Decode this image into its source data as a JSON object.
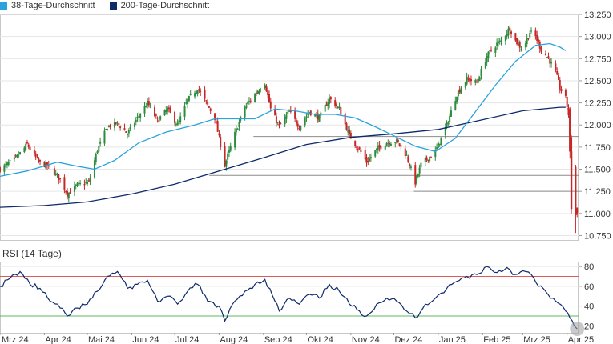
{
  "legend": {
    "items": [
      {
        "label": "38-Tage-Durchschnitt",
        "color": "#29a3dc"
      },
      {
        "label": "200-Tage-Durchschnitt",
        "color": "#0e2a6b"
      }
    ]
  },
  "chart_data": [
    {
      "type": "candlestick",
      "x_range": [
        "2024-03-01",
        "2025-04-09"
      ],
      "y_range": [
        10.7,
        13.25
      ],
      "y_ticks": [
        "13.250",
        "13.000",
        "12.750",
        "12.500",
        "12.250",
        "12.000",
        "11.750",
        "11.500",
        "11.250",
        "11.000",
        "10.750"
      ],
      "x_ticks": [
        "Mrz 24",
        "Apr 24",
        "Mai 24",
        "Jun 24",
        "Jul 24",
        "Aug 24",
        "Sep 24",
        "Okt 24",
        "Nov 24",
        "Dez 24",
        "Jan 25",
        "Feb 25",
        "Mrz 25",
        "Apr 25"
      ],
      "colors": {
        "up": "#2e8b3e",
        "down": "#c62828"
      },
      "horizontal_levels": [
        11.87,
        11.43,
        11.25,
        11.13
      ],
      "close_path": [
        [
          "2024-03-01",
          11.5
        ],
        [
          "2024-03-12",
          11.62
        ],
        [
          "2024-03-20",
          11.78
        ],
        [
          "2024-03-28",
          11.58
        ],
        [
          "2024-04-05",
          11.52
        ],
        [
          "2024-04-12",
          11.38
        ],
        [
          "2024-04-17",
          11.22
        ],
        [
          "2024-04-24",
          11.32
        ],
        [
          "2024-05-02",
          11.35
        ],
        [
          "2024-05-08",
          11.72
        ],
        [
          "2024-05-15",
          11.98
        ],
        [
          "2024-05-22",
          12.02
        ],
        [
          "2024-05-29",
          11.9
        ],
        [
          "2024-06-05",
          12.08
        ],
        [
          "2024-06-12",
          12.25
        ],
        [
          "2024-06-19",
          12.05
        ],
        [
          "2024-06-26",
          12.18
        ],
        [
          "2024-07-03",
          12.0
        ],
        [
          "2024-07-10",
          12.28
        ],
        [
          "2024-07-17",
          12.42
        ],
        [
          "2024-07-22",
          12.28
        ],
        [
          "2024-07-29",
          12.08
        ],
        [
          "2024-08-05",
          11.55
        ],
        [
          "2024-08-12",
          11.9
        ],
        [
          "2024-08-19",
          12.2
        ],
        [
          "2024-08-26",
          12.35
        ],
        [
          "2024-09-02",
          12.48
        ],
        [
          "2024-09-06",
          12.18
        ],
        [
          "2024-09-12",
          11.98
        ],
        [
          "2024-09-19",
          12.15
        ],
        [
          "2024-09-26",
          11.98
        ],
        [
          "2024-10-03",
          12.15
        ],
        [
          "2024-10-10",
          12.08
        ],
        [
          "2024-10-17",
          12.3
        ],
        [
          "2024-10-24",
          12.18
        ],
        [
          "2024-10-31",
          11.88
        ],
        [
          "2024-11-07",
          11.72
        ],
        [
          "2024-11-12",
          11.58
        ],
        [
          "2024-11-19",
          11.72
        ],
        [
          "2024-11-26",
          11.8
        ],
        [
          "2024-12-03",
          11.82
        ],
        [
          "2024-12-10",
          11.65
        ],
        [
          "2024-12-16",
          11.35
        ],
        [
          "2024-12-20",
          11.55
        ],
        [
          "2024-12-30",
          11.7
        ],
        [
          "2025-01-07",
          12.0
        ],
        [
          "2025-01-14",
          12.35
        ],
        [
          "2025-01-21",
          12.52
        ],
        [
          "2025-01-28",
          12.48
        ],
        [
          "2025-02-04",
          12.78
        ],
        [
          "2025-02-11",
          12.92
        ],
        [
          "2025-02-14",
          12.95
        ],
        [
          "2025-02-20",
          13.1
        ],
        [
          "2025-02-24",
          12.95
        ],
        [
          "2025-03-01",
          12.85
        ],
        [
          "2025-03-06",
          13.05
        ],
        [
          "2025-03-10",
          13.0
        ],
        [
          "2025-03-14",
          12.85
        ],
        [
          "2025-03-19",
          12.75
        ],
        [
          "2025-03-24",
          12.6
        ],
        [
          "2025-03-27",
          12.42
        ],
        [
          "2025-03-31",
          12.3
        ],
        [
          "2025-04-02",
          12.12
        ],
        [
          "2025-04-04",
          11.55
        ],
        [
          "2025-04-07",
          11.05
        ],
        [
          "2025-04-08",
          11.0
        ]
      ],
      "ma38": [
        [
          "2024-03-01",
          11.42
        ],
        [
          "2024-03-20",
          11.48
        ],
        [
          "2024-04-10",
          11.58
        ],
        [
          "2024-04-25",
          11.53
        ],
        [
          "2024-05-06",
          11.5
        ],
        [
          "2024-05-20",
          11.6
        ],
        [
          "2024-06-06",
          11.8
        ],
        [
          "2024-06-25",
          11.92
        ],
        [
          "2024-07-15",
          12.0
        ],
        [
          "2024-07-29",
          12.07
        ],
        [
          "2024-08-12",
          12.07
        ],
        [
          "2024-08-26",
          12.07
        ],
        [
          "2024-09-09",
          12.18
        ],
        [
          "2024-09-23",
          12.16
        ],
        [
          "2024-10-07",
          12.12
        ],
        [
          "2024-10-21",
          12.12
        ],
        [
          "2024-11-04",
          12.08
        ],
        [
          "2024-11-18",
          11.98
        ],
        [
          "2024-12-02",
          11.87
        ],
        [
          "2024-12-16",
          11.76
        ],
        [
          "2024-12-30",
          11.7
        ],
        [
          "2025-01-13",
          11.85
        ],
        [
          "2025-01-27",
          12.15
        ],
        [
          "2025-02-10",
          12.45
        ],
        [
          "2025-02-24",
          12.72
        ],
        [
          "2025-03-10",
          12.9
        ],
        [
          "2025-03-20",
          12.92
        ],
        [
          "2025-03-27",
          12.88
        ],
        [
          "2025-03-31",
          12.84
        ]
      ],
      "ma200": [
        [
          "2024-03-01",
          11.07
        ],
        [
          "2024-04-01",
          11.09
        ],
        [
          "2024-05-01",
          11.13
        ],
        [
          "2024-06-01",
          11.22
        ],
        [
          "2024-07-01",
          11.33
        ],
        [
          "2024-08-01",
          11.48
        ],
        [
          "2024-09-01",
          11.63
        ],
        [
          "2024-10-01",
          11.78
        ],
        [
          "2024-11-01",
          11.86
        ],
        [
          "2024-12-01",
          11.9
        ],
        [
          "2025-01-01",
          11.95
        ],
        [
          "2025-02-01",
          12.06
        ],
        [
          "2025-03-01",
          12.16
        ],
        [
          "2025-03-27",
          12.2
        ],
        [
          "2025-03-31",
          12.2
        ]
      ]
    },
    {
      "type": "line",
      "title": "RSI (14 Tage)",
      "y_range": [
        13,
        85
      ],
      "y_ticks": [
        "80",
        "60",
        "40",
        "20"
      ],
      "reference_lines": [
        70,
        30
      ],
      "color": "#0e2a6b",
      "values": [
        [
          "2024-03-01",
          60
        ],
        [
          "2024-03-08",
          68
        ],
        [
          "2024-03-15",
          75
        ],
        [
          "2024-03-22",
          62
        ],
        [
          "2024-03-29",
          58
        ],
        [
          "2024-04-05",
          45
        ],
        [
          "2024-04-12",
          38
        ],
        [
          "2024-04-17",
          30
        ],
        [
          "2024-04-24",
          38
        ],
        [
          "2024-05-01",
          42
        ],
        [
          "2024-05-08",
          55
        ],
        [
          "2024-05-15",
          70
        ],
        [
          "2024-05-22",
          75
        ],
        [
          "2024-05-29",
          58
        ],
        [
          "2024-06-05",
          62
        ],
        [
          "2024-06-12",
          66
        ],
        [
          "2024-06-19",
          45
        ],
        [
          "2024-06-26",
          50
        ],
        [
          "2024-07-03",
          42
        ],
        [
          "2024-07-10",
          55
        ],
        [
          "2024-07-17",
          62
        ],
        [
          "2024-07-24",
          45
        ],
        [
          "2024-08-01",
          40
        ],
        [
          "2024-08-05",
          25
        ],
        [
          "2024-08-12",
          45
        ],
        [
          "2024-08-19",
          55
        ],
        [
          "2024-08-26",
          62
        ],
        [
          "2024-09-02",
          67
        ],
        [
          "2024-09-09",
          45
        ],
        [
          "2024-09-12",
          35
        ],
        [
          "2024-09-19",
          48
        ],
        [
          "2024-09-26",
          42
        ],
        [
          "2024-10-03",
          52
        ],
        [
          "2024-10-10",
          48
        ],
        [
          "2024-10-17",
          62
        ],
        [
          "2024-10-24",
          55
        ],
        [
          "2024-10-31",
          42
        ],
        [
          "2024-11-07",
          35
        ],
        [
          "2024-11-12",
          30
        ],
        [
          "2024-11-19",
          42
        ],
        [
          "2024-11-26",
          48
        ],
        [
          "2024-12-03",
          45
        ],
        [
          "2024-12-10",
          35
        ],
        [
          "2024-12-16",
          28
        ],
        [
          "2024-12-23",
          42
        ],
        [
          "2024-12-30",
          48
        ],
        [
          "2025-01-07",
          58
        ],
        [
          "2025-01-14",
          65
        ],
        [
          "2025-01-21",
          70
        ],
        [
          "2025-01-28",
          72
        ],
        [
          "2025-02-04",
          80
        ],
        [
          "2025-02-11",
          74
        ],
        [
          "2025-02-18",
          79
        ],
        [
          "2025-02-24",
          72
        ],
        [
          "2025-03-03",
          75
        ],
        [
          "2025-03-07",
          72
        ],
        [
          "2025-03-12",
          60
        ],
        [
          "2025-03-17",
          55
        ],
        [
          "2025-03-24",
          45
        ],
        [
          "2025-03-31",
          35
        ],
        [
          "2025-04-03",
          28
        ],
        [
          "2025-04-06",
          20
        ],
        [
          "2025-04-08",
          17
        ]
      ]
    }
  ]
}
